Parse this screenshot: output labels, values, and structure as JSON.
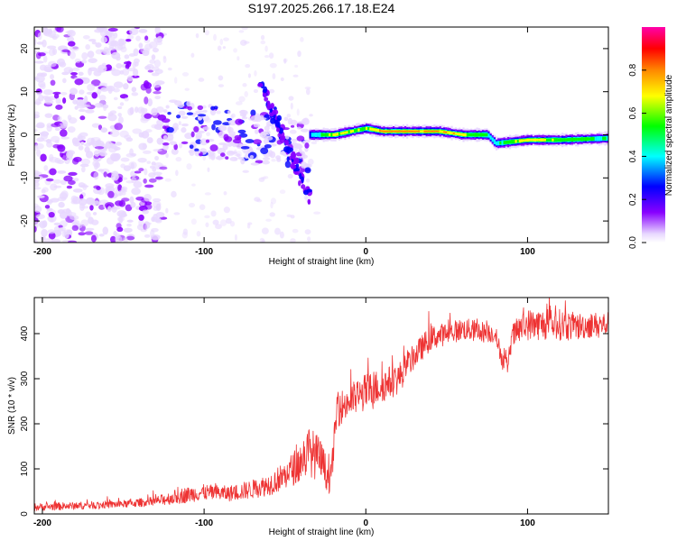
{
  "title": "S197.2025.266.17.18.E24",
  "chart_data": [
    {
      "type": "heatmap",
      "title": "S197.2025.266.17.18.E24",
      "xlabel": "Height of straight line (km)",
      "ylabel": "Frequency (Hz)",
      "xlim": [
        -205,
        150
      ],
      "ylim": [
        -25,
        25
      ],
      "x_ticks": [
        -200,
        -100,
        0,
        100
      ],
      "y_ticks": [
        -20,
        -10,
        0,
        10,
        20
      ],
      "x_tick_labels": [
        "-200",
        "-100",
        "0",
        "100"
      ],
      "y_tick_labels": [
        "-20",
        "-10",
        "0",
        "10",
        "20"
      ],
      "colorbar": {
        "label": "Normalized spectral amplitude",
        "range": [
          0,
          1
        ],
        "ticks": [
          0.0,
          0.2,
          0.4,
          0.6,
          0.8
        ],
        "tick_labels": [
          "0.0",
          "0.2",
          "0.4",
          "0.6",
          "0.8"
        ],
        "colors": [
          "#e8d8ff",
          "#8800ff",
          "#0000ff",
          "#00ffff",
          "#00ff00",
          "#ffff00",
          "#ff8800",
          "#ff0000",
          "#ff00aa"
        ]
      },
      "features": {
        "noise_region_x": [
          -205,
          -125
        ],
        "scatter_cluster_x": [
          -125,
          -35
        ],
        "diagonal_track": [
          [
            -65,
            12
          ],
          [
            -35,
            -15
          ]
        ],
        "line_track": {
          "x": [
            -35,
            -20,
            0,
            10,
            30,
            45,
            60,
            75,
            80,
            100,
            120,
            150
          ],
          "y": [
            0,
            0,
            1.5,
            0.8,
            0.8,
            0.8,
            0,
            0,
            -2,
            -1.2,
            -1.2,
            -0.8
          ],
          "amplitude": [
            0.45,
            0.8,
            0.75,
            0.95,
            0.95,
            0.9,
            0.8,
            0.6,
            0.55,
            0.85,
            0.7,
            0.6
          ]
        }
      }
    },
    {
      "type": "line",
      "xlabel": "Height of straight line (km)",
      "ylabel": "SNR (10 * v/v)",
      "xlim": [
        -205,
        150
      ],
      "ylim": [
        0,
        480
      ],
      "x_ticks": [
        -200,
        -100,
        0,
        100
      ],
      "y_ticks": [
        0,
        100,
        200,
        300,
        400
      ],
      "x_tick_labels": [
        "-200",
        "-100",
        "0",
        "100"
      ],
      "y_tick_labels": [
        "0",
        "100",
        "200",
        "300",
        "400"
      ],
      "color": "#ee3333",
      "series": [
        {
          "name": "SNR",
          "x": [
            -205,
            -180,
            -150,
            -130,
            -115,
            -100,
            -85,
            -70,
            -60,
            -50,
            -42,
            -35,
            -28,
            -22,
            -20,
            -18,
            -10,
            0,
            10,
            20,
            30,
            40,
            50,
            60,
            70,
            80,
            85,
            88,
            90,
            95,
            100,
            110,
            120,
            130,
            140,
            150
          ],
          "y": [
            15,
            18,
            22,
            28,
            40,
            48,
            45,
            55,
            65,
            85,
            110,
            140,
            120,
            70,
            140,
            230,
            250,
            270,
            285,
            300,
            350,
            390,
            400,
            410,
            405,
            400,
            335,
            330,
            390,
            410,
            420,
            420,
            420,
            415,
            420,
            420
          ],
          "spread": [
            12,
            12,
            12,
            15,
            25,
            25,
            25,
            30,
            35,
            45,
            60,
            80,
            70,
            40,
            50,
            55,
            55,
            60,
            55,
            50,
            40,
            40,
            35,
            35,
            35,
            30,
            30,
            30,
            40,
            45,
            50,
            50,
            50,
            45,
            40,
            40
          ]
        }
      ]
    }
  ]
}
